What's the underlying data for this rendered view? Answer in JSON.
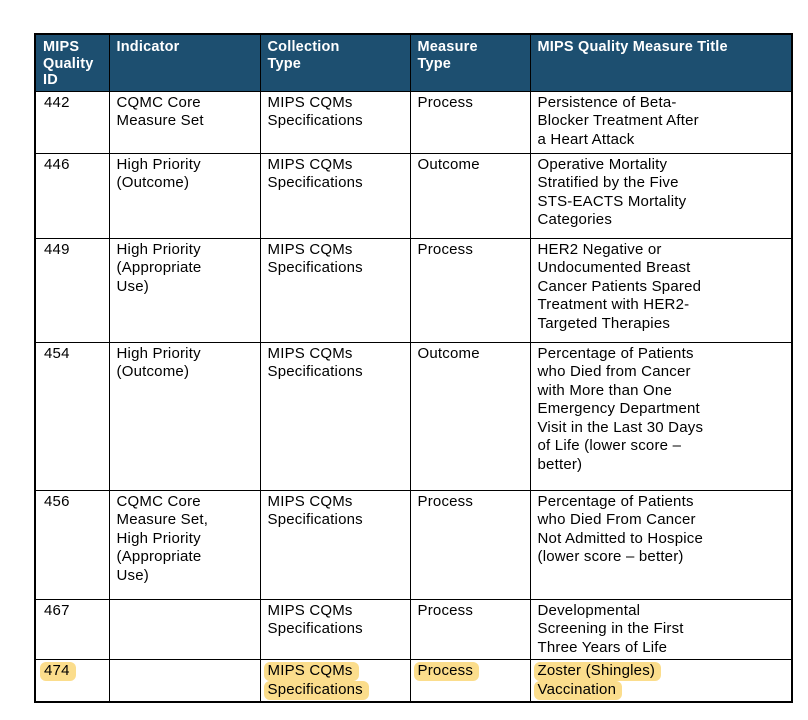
{
  "page": {
    "background": "#ffffff"
  },
  "table": {
    "header": {
      "bg_color": "#1d4f70",
      "text_color": "#ffffff",
      "columns": [
        "MIPS\nQuality\nID",
        "Indicator",
        "Collection\nType",
        "Measure\nType",
        "MIPS Quality Measure Title"
      ]
    },
    "highlight_color": "#fbdd8c",
    "border_color": "#000000",
    "rows": [
      {
        "id": "442",
        "indicator": "CQMC Core\nMeasure Set",
        "collection_type": "MIPS CQMs\nSpecifications",
        "measure_type": "Process",
        "title": "Persistence of Beta-\nBlocker Treatment After\na Heart Attack",
        "highlighted": false
      },
      {
        "id": "446",
        "indicator": "High Priority\n(Outcome)",
        "collection_type": "MIPS CQMs\nSpecifications",
        "measure_type": "Outcome",
        "title": "Operative Mortality\nStratified by the Five\nSTS-EACTS Mortality\nCategories",
        "highlighted": false
      },
      {
        "id": "449",
        "indicator": "High Priority\n(Appropriate\nUse)",
        "collection_type": "MIPS CQMs\nSpecifications",
        "measure_type": "Process",
        "title": "HER2 Negative or\nUndocumented Breast\nCancer Patients Spared\nTreatment with HER2-\nTargeted Therapies",
        "highlighted": false
      },
      {
        "id": "454",
        "indicator": "High Priority\n(Outcome)",
        "collection_type": "MIPS CQMs\nSpecifications",
        "measure_type": "Outcome",
        "title": "Percentage of Patients\nwho Died from Cancer\nwith More than One\nEmergency Department\nVisit in the Last 30 Days\nof Life (lower score –\nbetter)",
        "highlighted": false
      },
      {
        "id": "456",
        "indicator": "CQMC Core\nMeasure Set,\nHigh Priority\n(Appropriate\nUse)",
        "collection_type": "MIPS CQMs\nSpecifications",
        "measure_type": "Process",
        "title": "Percentage of Patients\nwho Died From Cancer\nNot Admitted to Hospice\n(lower score – better)",
        "highlighted": false
      },
      {
        "id": "467",
        "indicator": "",
        "collection_type": "MIPS CQMs\nSpecifications",
        "measure_type": "Process",
        "title": "Developmental\nScreening in the First\nThree Years of Life",
        "highlighted": false
      },
      {
        "id": "474",
        "indicator": "",
        "collection_type": "MIPS CQMs\nSpecifications",
        "measure_type": "Process",
        "title": "Zoster (Shingles)\nVaccination",
        "highlighted": true
      }
    ]
  }
}
